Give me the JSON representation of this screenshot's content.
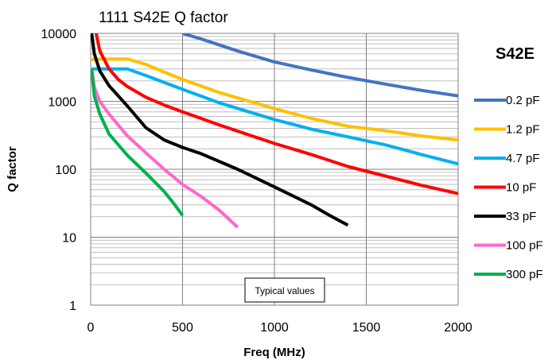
{
  "chart_data": {
    "type": "line",
    "title": "1111 S42E Q factor",
    "xlabel": "Freq (MHz)",
    "ylabel": "Q factor",
    "legend_title": "S42E",
    "legend_position": "right",
    "annotation": "Typical values",
    "xlim": [
      0,
      2000
    ],
    "ylim": [
      1,
      10000
    ],
    "y_scale": "log",
    "grid": true,
    "x_ticks": [
      0,
      500,
      1000,
      1500,
      2000
    ],
    "x_tick_labels": [
      "0",
      "500",
      "1000",
      "1500",
      "2000"
    ],
    "y_ticks": [
      1,
      10,
      100,
      1000,
      10000
    ],
    "y_tick_labels": [
      "1",
      "10",
      "100",
      "1000",
      "10000"
    ],
    "series": [
      {
        "name": "0.2 pF",
        "color": "#4472C4",
        "points": [
          [
            500,
            10000
          ],
          [
            600,
            8300
          ],
          [
            800,
            5500
          ],
          [
            1000,
            3800
          ],
          [
            1200,
            2900
          ],
          [
            1400,
            2250
          ],
          [
            1600,
            1800
          ],
          [
            1800,
            1450
          ],
          [
            2000,
            1200
          ]
        ]
      },
      {
        "name": "1.2 pF",
        "color": "#FFC000",
        "points": [
          [
            5,
            4100
          ],
          [
            50,
            4200
          ],
          [
            200,
            4200
          ],
          [
            300,
            3500
          ],
          [
            400,
            2700
          ],
          [
            500,
            2100
          ],
          [
            700,
            1350
          ],
          [
            1000,
            780
          ],
          [
            1200,
            560
          ],
          [
            1400,
            430
          ],
          [
            1600,
            370
          ],
          [
            1800,
            310
          ],
          [
            2000,
            270
          ]
        ]
      },
      {
        "name": "4.7 pF",
        "color": "#00B0F0",
        "points": [
          [
            5,
            3000
          ],
          [
            100,
            3000
          ],
          [
            200,
            3000
          ],
          [
            300,
            2400
          ],
          [
            400,
            1900
          ],
          [
            500,
            1500
          ],
          [
            700,
            950
          ],
          [
            1000,
            540
          ],
          [
            1200,
            390
          ],
          [
            1400,
            300
          ],
          [
            1600,
            230
          ],
          [
            1800,
            165
          ],
          [
            2000,
            120
          ]
        ]
      },
      {
        "name": "10 pF",
        "color": "#FF0000",
        "points": [
          [
            30,
            10000
          ],
          [
            50,
            5500
          ],
          [
            100,
            3000
          ],
          [
            150,
            2100
          ],
          [
            200,
            1650
          ],
          [
            300,
            1150
          ],
          [
            400,
            880
          ],
          [
            500,
            700
          ],
          [
            700,
            450
          ],
          [
            1000,
            240
          ],
          [
            1200,
            165
          ],
          [
            1400,
            110
          ],
          [
            1600,
            80
          ],
          [
            1800,
            58
          ],
          [
            2000,
            44
          ]
        ]
      },
      {
        "name": "33 pF",
        "color": "#000000",
        "points": [
          [
            5,
            10000
          ],
          [
            20,
            5000
          ],
          [
            50,
            2800
          ],
          [
            100,
            1700
          ],
          [
            150,
            1200
          ],
          [
            200,
            850
          ],
          [
            300,
            410
          ],
          [
            400,
            270
          ],
          [
            500,
            210
          ],
          [
            600,
            170
          ],
          [
            800,
            100
          ],
          [
            1000,
            55
          ],
          [
            1200,
            30
          ],
          [
            1300,
            21
          ],
          [
            1400,
            15
          ]
        ]
      },
      {
        "name": "100 pF",
        "color": "#FF66CC",
        "points": [
          [
            5,
            3000
          ],
          [
            20,
            1600
          ],
          [
            50,
            1000
          ],
          [
            100,
            650
          ],
          [
            200,
            310
          ],
          [
            300,
            175
          ],
          [
            400,
            100
          ],
          [
            500,
            60
          ],
          [
            600,
            40
          ],
          [
            700,
            25
          ],
          [
            800,
            14
          ]
        ]
      },
      {
        "name": "300 pF",
        "color": "#00B050",
        "points": [
          [
            5,
            3000
          ],
          [
            20,
            1200
          ],
          [
            50,
            650
          ],
          [
            100,
            330
          ],
          [
            200,
            160
          ],
          [
            300,
            88
          ],
          [
            400,
            47
          ],
          [
            450,
            32
          ],
          [
            500,
            21
          ]
        ]
      }
    ]
  }
}
